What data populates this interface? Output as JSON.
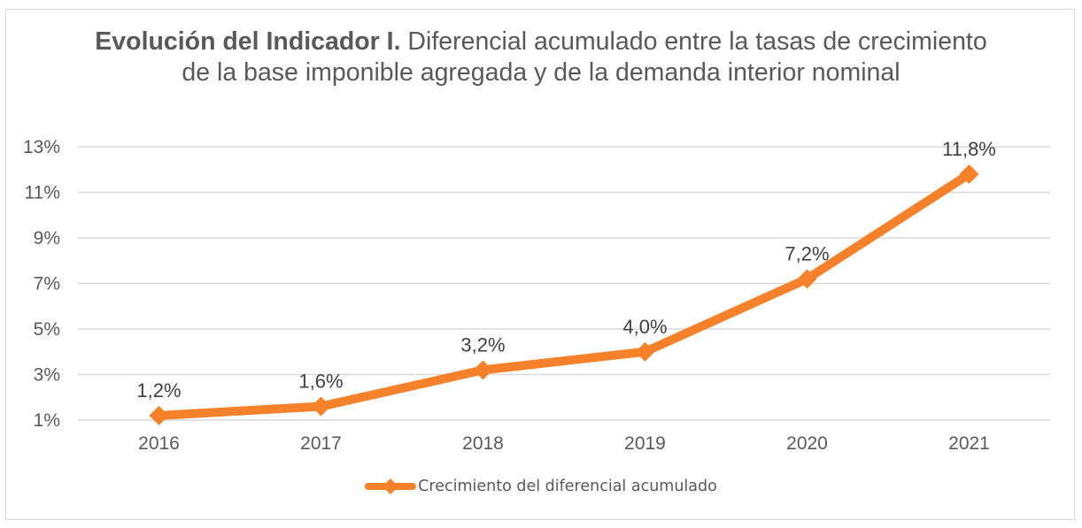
{
  "chart_data": {
    "type": "line",
    "title_bold": "Evolución del Indicador I.",
    "title_rest": " Diferencial acumulado entre la tasas de crecimiento de la base imponible agregada y de la demanda interior nominal",
    "categories": [
      "2016",
      "2017",
      "2018",
      "2019",
      "2020",
      "2021"
    ],
    "series": [
      {
        "name": "Crecimiento del diferencial acumulado",
        "values": [
          1.2,
          1.6,
          3.2,
          4.0,
          7.2,
          11.8
        ],
        "labels": [
          "1,2%",
          "1,6%",
          "3,2%",
          "4,0%",
          "7,2%",
          "11,8%"
        ],
        "color": "#F5822A",
        "marker": "diamond"
      }
    ],
    "yticks": [
      "1%",
      "3%",
      "5%",
      "7%",
      "9%",
      "11%",
      "13%"
    ],
    "ylim": [
      1,
      13
    ],
    "grid": true,
    "legend": "bottom"
  }
}
